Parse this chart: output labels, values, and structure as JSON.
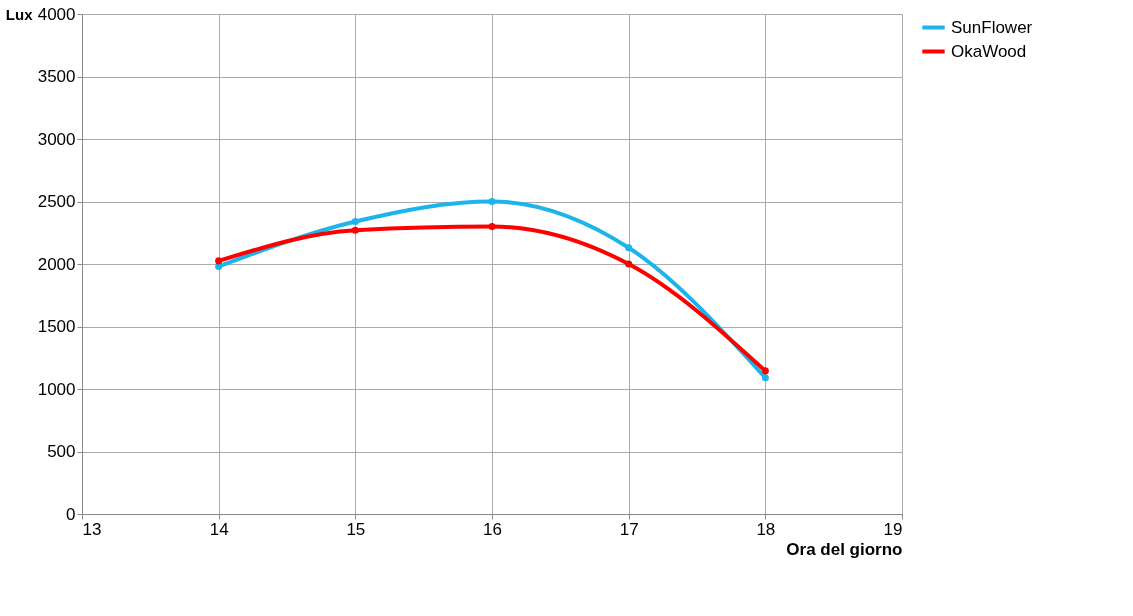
{
  "chart_data": {
    "type": "line",
    "xlabel": "Ora del giorno",
    "ylabel": "Lux",
    "x": [
      14,
      15,
      16,
      17,
      18
    ],
    "series": [
      {
        "name": "SunFlower",
        "color": "#1cb4ea",
        "values": [
          1980,
          2340,
          2500,
          2130,
          1090
        ]
      },
      {
        "name": "OkaWood",
        "color": "#ff0000",
        "values": [
          2025,
          2270,
          2300,
          2000,
          1145
        ]
      }
    ],
    "xlim": [
      13,
      19
    ],
    "xticks": [
      13,
      14,
      15,
      16,
      17,
      18,
      19
    ],
    "ylim": [
      0,
      4000
    ],
    "yticks": [
      0,
      500,
      1000,
      1500,
      2000,
      2500,
      3000,
      3500,
      4000
    ],
    "grid": true,
    "legend": "right",
    "marker": "circle",
    "line_style": "solid"
  }
}
